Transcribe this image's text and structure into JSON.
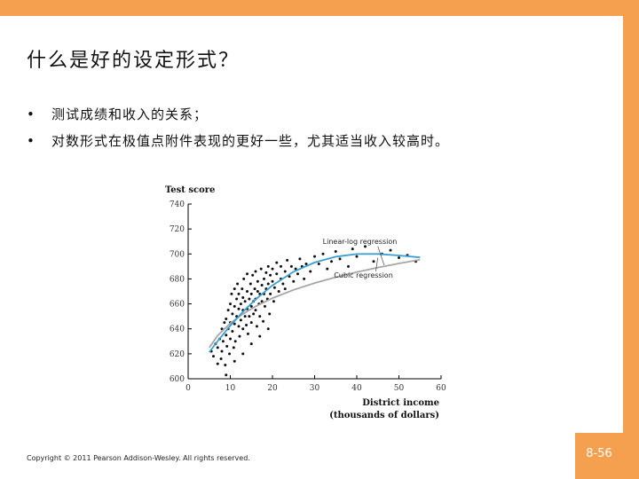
{
  "slide": {
    "title": "什么是好的设定形式？",
    "bullets": [
      "测试成绩和收入的关系；",
      "对数形式在极值点附件表现的更好一些，尤其适当收入较高时。"
    ],
    "copyright": "Copyright © 2011 Pearson Addison-Wesley. All rights reserved.",
    "page_number": "8-56",
    "bullet_symbol": "•"
  },
  "colors": {
    "accent": "#f4a04f",
    "linear_log": "#a6a6a6",
    "cubic": "#3a9fd0",
    "points": "#111111"
  },
  "chart_data": {
    "type": "scatter",
    "title": "",
    "ylabel": "Test score",
    "xlabel_line1": "District income",
    "xlabel_line2": "(thousands of dollars)",
    "xlim": [
      0,
      60
    ],
    "ylim": [
      600,
      740
    ],
    "x_ticks": [
      0,
      10,
      20,
      30,
      40,
      50,
      60
    ],
    "y_ticks": [
      600,
      620,
      640,
      660,
      680,
      700,
      720,
      740
    ],
    "grid": false,
    "annotations": [
      {
        "text": "Linear-log regression",
        "at": [
          42,
          710
        ]
      },
      {
        "text": "Cubic regression",
        "at": [
          42,
          683
        ]
      }
    ],
    "series": [
      {
        "name": "Linear-log regression",
        "kind": "line",
        "points": [
          [
            5,
            625
          ],
          [
            7,
            634.7
          ],
          [
            10,
            644.5
          ],
          [
            13,
            652
          ],
          [
            16,
            658
          ],
          [
            20,
            664.6
          ],
          [
            25,
            671.2
          ],
          [
            30,
            676.7
          ],
          [
            35,
            681.4
          ],
          [
            40,
            685.5
          ],
          [
            45,
            689.1
          ],
          [
            50,
            692.4
          ],
          [
            55,
            695.4
          ]
        ]
      },
      {
        "name": "Cubic regression",
        "kind": "line",
        "points": [
          [
            5,
            621.3
          ],
          [
            7,
            630.2
          ],
          [
            10,
            642.6
          ],
          [
            13,
            653.7
          ],
          [
            16,
            663.5
          ],
          [
            20,
            674.8
          ],
          [
            25,
            685.8
          ],
          [
            30,
            693.2
          ],
          [
            35,
            697.8
          ],
          [
            40,
            699.9
          ],
          [
            45,
            700
          ],
          [
            50,
            698.8
          ],
          [
            55,
            697.2
          ]
        ]
      },
      {
        "name": "",
        "kind": "scatter",
        "points": [
          [
            5.5,
            622
          ],
          [
            6,
            618
          ],
          [
            6.5,
            628
          ],
          [
            7,
            612
          ],
          [
            7,
            625
          ],
          [
            7.5,
            632
          ],
          [
            7.8,
            616
          ],
          [
            8,
            640
          ],
          [
            8,
            622
          ],
          [
            8.3,
            630
          ],
          [
            8.6,
            645
          ],
          [
            8.8,
            611
          ],
          [
            9,
            635
          ],
          [
            9,
            648
          ],
          [
            9.2,
            626
          ],
          [
            9.5,
            655
          ],
          [
            9.5,
            640
          ],
          [
            9.8,
            620
          ],
          [
            10,
            660
          ],
          [
            10,
            645
          ],
          [
            10,
            632
          ],
          [
            10.3,
            668
          ],
          [
            10.5,
            652
          ],
          [
            10.5,
            638
          ],
          [
            10.8,
            625
          ],
          [
            11,
            672
          ],
          [
            11,
            658
          ],
          [
            11,
            644
          ],
          [
            11.2,
            630
          ],
          [
            11.5,
            664
          ],
          [
            11.5,
            650
          ],
          [
            11.7,
            676
          ],
          [
            12,
            656
          ],
          [
            12,
            642
          ],
          [
            12,
            668
          ],
          [
            12.2,
            634
          ],
          [
            12.5,
            660
          ],
          [
            12.5,
            647
          ],
          [
            12.8,
            672
          ],
          [
            13,
            655
          ],
          [
            13,
            640
          ],
          [
            13,
            665
          ],
          [
            13.2,
            680
          ],
          [
            13.5,
            650
          ],
          [
            13.5,
            662
          ],
          [
            13.8,
            643
          ],
          [
            14,
            670
          ],
          [
            14,
            656
          ],
          [
            14,
            684
          ],
          [
            14.2,
            636
          ],
          [
            14.5,
            664
          ],
          [
            14.5,
            650
          ],
          [
            14.8,
            676
          ],
          [
            15,
            658
          ],
          [
            15,
            668
          ],
          [
            15,
            645
          ],
          [
            15.3,
            683
          ],
          [
            15.5,
            662
          ],
          [
            15.5,
            652
          ],
          [
            15.8,
            672
          ],
          [
            16,
            664
          ],
          [
            16,
            655
          ],
          [
            16,
            686
          ],
          [
            16.3,
            642
          ],
          [
            16.5,
            670
          ],
          [
            16.5,
            678
          ],
          [
            16.8,
            660
          ],
          [
            17,
            668
          ],
          [
            17,
            650
          ],
          [
            17.3,
            688
          ],
          [
            17.5,
            675
          ],
          [
            17.5,
            662
          ],
          [
            17.8,
            646
          ],
          [
            18,
            680
          ],
          [
            18,
            668
          ],
          [
            18.2,
            658
          ],
          [
            18.5,
            685
          ],
          [
            18.5,
            672
          ],
          [
            18.8,
            664
          ],
          [
            19,
            690
          ],
          [
            19,
            676
          ],
          [
            19.3,
            652
          ],
          [
            19.5,
            683
          ],
          [
            19.5,
            668
          ],
          [
            20,
            678
          ],
          [
            20,
            688
          ],
          [
            20.3,
            662
          ],
          [
            20.5,
            673
          ],
          [
            21,
            684
          ],
          [
            21,
            693
          ],
          [
            21.5,
            670
          ],
          [
            22,
            680
          ],
          [
            22,
            690
          ],
          [
            22.5,
            676
          ],
          [
            23,
            686
          ],
          [
            23,
            672
          ],
          [
            23.5,
            695
          ],
          [
            24,
            682
          ],
          [
            24.5,
            690
          ],
          [
            25,
            678
          ],
          [
            25.5,
            688
          ],
          [
            26,
            684
          ],
          [
            26.5,
            696
          ],
          [
            27,
            690
          ],
          [
            27.5,
            680
          ],
          [
            28,
            692
          ],
          [
            29,
            686
          ],
          [
            30,
            698
          ],
          [
            31,
            692
          ],
          [
            32,
            700
          ],
          [
            33,
            688
          ],
          [
            34,
            694
          ],
          [
            35,
            702
          ],
          [
            36,
            696
          ],
          [
            38,
            690
          ],
          [
            39,
            704
          ],
          [
            40,
            698
          ],
          [
            42,
            706
          ],
          [
            44,
            694
          ],
          [
            46,
            700
          ],
          [
            48,
            703
          ],
          [
            50,
            697
          ],
          [
            52,
            699
          ],
          [
            54,
            694
          ],
          [
            9,
            603
          ],
          [
            11,
            614
          ],
          [
            13,
            620
          ],
          [
            15,
            628
          ],
          [
            17,
            634
          ],
          [
            19,
            640
          ]
        ]
      }
    ]
  }
}
